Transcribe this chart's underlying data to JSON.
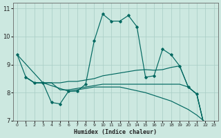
{
  "bg_color": "#cce8e0",
  "grid_color": "#a8ccc4",
  "line_color": "#006860",
  "xlabel": "Humidex (Indice chaleur)",
  "xlim": [
    -0.5,
    23.5
  ],
  "ylim": [
    7,
    11.2
  ],
  "xtick_labels": [
    "0",
    "1",
    "2",
    "3",
    "4",
    "5",
    "6",
    "7",
    "8",
    "9",
    "10",
    "11",
    "12",
    "13",
    "14",
    "15",
    "16",
    "17",
    "18",
    "19",
    "20",
    "21",
    "22",
    "23"
  ],
  "xtick_vals": [
    0,
    1,
    2,
    3,
    4,
    5,
    6,
    7,
    8,
    9,
    10,
    11,
    12,
    13,
    14,
    15,
    16,
    17,
    18,
    19,
    20,
    21,
    22,
    23
  ],
  "yticks": [
    7,
    8,
    9,
    10,
    11
  ],
  "line1_x": [
    0,
    1,
    2,
    3,
    4,
    5,
    6,
    7,
    8,
    9,
    10,
    11,
    12,
    13,
    14,
    15,
    16,
    17,
    18,
    19,
    20,
    21,
    22,
    23
  ],
  "line1_y": [
    9.35,
    8.55,
    8.35,
    8.35,
    7.65,
    7.6,
    8.05,
    8.05,
    8.3,
    9.85,
    10.8,
    10.55,
    10.55,
    10.75,
    10.35,
    8.55,
    8.6,
    9.55,
    9.35,
    8.95,
    8.2,
    7.95,
    6.65,
    6.5
  ],
  "line2_x": [
    1,
    2,
    3,
    4,
    5,
    6,
    7,
    8,
    9,
    10,
    11,
    12,
    13,
    14,
    15,
    16,
    17,
    18,
    19,
    20,
    21,
    22,
    23
  ],
  "line2_y": [
    8.55,
    8.35,
    8.35,
    8.35,
    8.35,
    8.4,
    8.4,
    8.45,
    8.5,
    8.6,
    8.65,
    8.7,
    8.75,
    8.8,
    8.82,
    8.8,
    8.82,
    8.9,
    8.95,
    8.2,
    7.95,
    6.65,
    6.5
  ],
  "line3_x": [
    1,
    2,
    3,
    4,
    5,
    6,
    7,
    8,
    9,
    10,
    11,
    12,
    13,
    14,
    15,
    16,
    17,
    18,
    19,
    20,
    21,
    22,
    23
  ],
  "line3_y": [
    8.55,
    8.35,
    8.35,
    8.35,
    8.1,
    8.1,
    8.15,
    8.2,
    8.25,
    8.3,
    8.3,
    8.3,
    8.3,
    8.3,
    8.3,
    8.3,
    8.3,
    8.3,
    8.3,
    8.2,
    7.95,
    6.65,
    6.5
  ],
  "line4_x": [
    0,
    3,
    6,
    9,
    12,
    15,
    18,
    20,
    21,
    22,
    23
  ],
  "line4_y": [
    9.35,
    8.35,
    8.05,
    8.2,
    8.2,
    8.0,
    7.7,
    7.4,
    7.2,
    6.95,
    6.5
  ]
}
